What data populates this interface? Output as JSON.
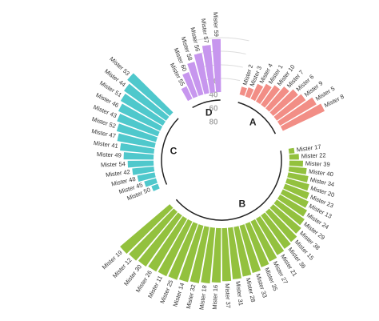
{
  "chart_data": {
    "type": "circular_bar",
    "ylim": [
      0,
      100
    ],
    "yticks": [
      20,
      40,
      60,
      80
    ],
    "series": [
      {
        "name": "A",
        "color": "#f28e86",
        "categories": [
          "Mister 2",
          "Mister 3",
          "Mister 4",
          "Mister 1",
          "Mister 10",
          "Mister 7",
          "Mister 6",
          "Mister 9",
          "Mister 5",
          "Mister 8"
        ],
        "values": [
          12,
          14,
          24,
          30,
          35,
          42,
          48,
          52,
          62,
          68
        ]
      },
      {
        "name": "B",
        "color": "#93c13e",
        "categories": [
          "Mister 17",
          "Mister 22",
          "Mister 39",
          "Mister 40",
          "Mister 34",
          "Mister 20",
          "Mister 23",
          "Mister 13",
          "Mister 24",
          "Mister 29",
          "Mister 38",
          "Mister 15",
          "Mister 36",
          "Mister 21",
          "Mister 27",
          "Mister 35",
          "Mister 33",
          "Mister 28",
          "Mister 31",
          "Mister 37",
          "Mister 16",
          "Mister 18",
          "Mister 32",
          "Mister 14",
          "Mister 25",
          "Mister 11",
          "Mister 26",
          "Mister 30",
          "Mister 12",
          "Mister 19"
        ],
        "values": [
          8,
          14,
          20,
          26,
          30,
          34,
          38,
          42,
          46,
          50,
          54,
          58,
          60,
          62,
          65,
          68,
          72,
          74,
          76,
          78,
          80,
          82,
          84,
          86,
          88,
          89,
          90,
          92,
          94,
          96
        ]
      },
      {
        "name": "C",
        "color": "#4fc8cc",
        "categories": [
          "Mister 50",
          "Mister 45",
          "Mister 48",
          "Mister 42",
          "Mister 54",
          "Mister 49",
          "Mister 41",
          "Mister 47",
          "Mister 52",
          "Mister 43",
          "Mister 46",
          "Mister 51",
          "Mister 44",
          "Mister 53"
        ],
        "values": [
          10,
          18,
          26,
          32,
          38,
          44,
          50,
          56,
          60,
          64,
          68,
          72,
          76,
          82
        ]
      },
      {
        "name": "D",
        "color": "#c796ee",
        "categories": [
          "Mister 55",
          "Mister 60",
          "Mister 58",
          "Mister 56",
          "Mister 57",
          "Mister 59"
        ],
        "values": [
          20,
          38,
          50,
          60,
          70,
          78
        ]
      }
    ]
  }
}
